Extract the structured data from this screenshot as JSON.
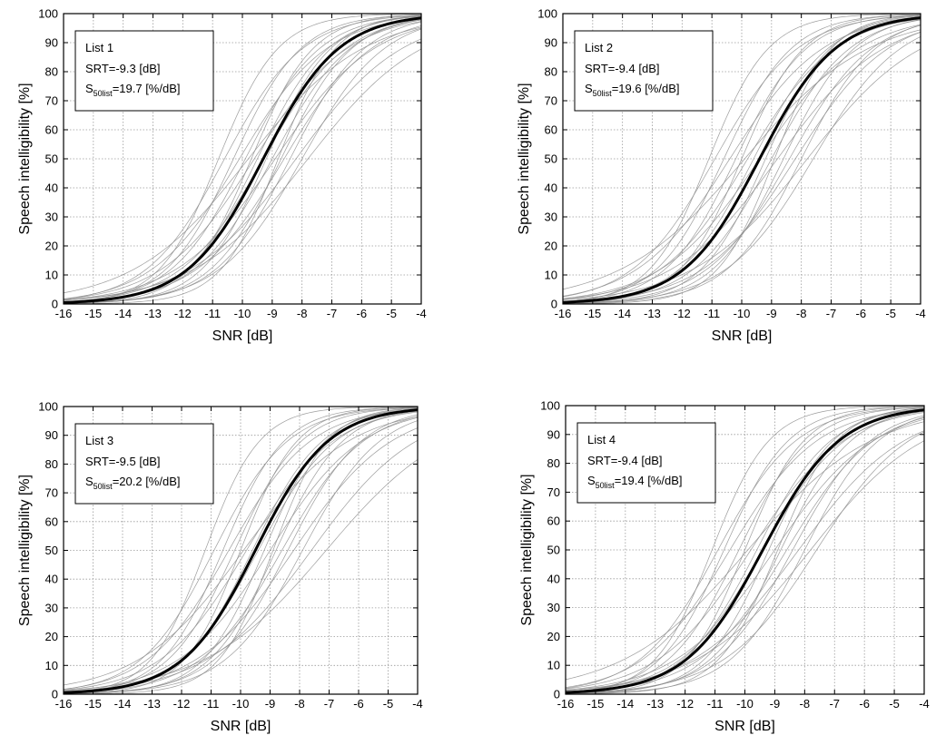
{
  "colors": {
    "mean_curve": "#000000",
    "individual_curve": "#8c8c8c",
    "grid": "#9a9a9a",
    "frame": "#000000"
  },
  "chart_data": [
    {
      "type": "line",
      "xlabel": "SNR [dB]",
      "ylabel": "Speech intelligibility  [%]",
      "xlim": [
        -16,
        -4
      ],
      "ylim": [
        0,
        100
      ],
      "xticks": [
        -16,
        -15,
        -14,
        -13,
        -12,
        -11,
        -10,
        -9,
        -8,
        -7,
        -6,
        -5,
        -4
      ],
      "yticks": [
        0,
        10,
        20,
        30,
        40,
        50,
        60,
        70,
        80,
        90,
        100
      ],
      "grid": true,
      "legend_position": "top-left",
      "legend": {
        "title": "List 1",
        "srt_line": "SRT=-9.3 [dB]",
        "slope_prefix": "S",
        "slope_sub": "50list",
        "slope_value": "=19.7 [%/dB]"
      },
      "mean_curve": {
        "srt": -9.3,
        "slope": 19.7
      },
      "individual_curves": [
        {
          "srt": -10.6,
          "slope": 19
        },
        {
          "srt": -10.3,
          "slope": 22
        },
        {
          "srt": -10.1,
          "slope": 17
        },
        {
          "srt": -9.9,
          "slope": 20
        },
        {
          "srt": -9.7,
          "slope": 24
        },
        {
          "srt": -9.6,
          "slope": 16
        },
        {
          "srt": -9.5,
          "slope": 21
        },
        {
          "srt": -9.3,
          "slope": 18
        },
        {
          "srt": -9.2,
          "slope": 23
        },
        {
          "srt": -9.0,
          "slope": 19
        },
        {
          "srt": -8.9,
          "slope": 15
        },
        {
          "srt": -8.7,
          "slope": 21
        },
        {
          "srt": -8.6,
          "slope": 17
        },
        {
          "srt": -8.4,
          "slope": 20
        },
        {
          "srt": -8.2,
          "slope": 14
        },
        {
          "srt": -8.0,
          "slope": 18
        },
        {
          "srt": -7.8,
          "slope": 13
        },
        {
          "srt": -10.8,
          "slope": 25
        },
        {
          "srt": -9.8,
          "slope": 13
        },
        {
          "srt": -8.8,
          "slope": 26
        }
      ]
    },
    {
      "type": "line",
      "xlabel": "SNR [dB]",
      "ylabel": "Speech intelligibility  [%]",
      "xlim": [
        -16,
        -4
      ],
      "ylim": [
        0,
        100
      ],
      "xticks": [
        -16,
        -15,
        -14,
        -13,
        -12,
        -11,
        -10,
        -9,
        -8,
        -7,
        -6,
        -5,
        -4
      ],
      "yticks": [
        0,
        10,
        20,
        30,
        40,
        50,
        60,
        70,
        80,
        90,
        100
      ],
      "grid": true,
      "legend_position": "top-left",
      "legend": {
        "title": "List 2",
        "srt_line": "SRT=-9.4 [dB]",
        "slope_prefix": "S",
        "slope_sub": "50list",
        "slope_value": "=19.6 [%/dB]"
      },
      "mean_curve": {
        "srt": -9.4,
        "slope": 19.6
      },
      "individual_curves": [
        {
          "srt": -10.9,
          "slope": 18
        },
        {
          "srt": -10.6,
          "slope": 22
        },
        {
          "srt": -10.4,
          "slope": 16
        },
        {
          "srt": -10.2,
          "slope": 21
        },
        {
          "srt": -10.0,
          "slope": 24
        },
        {
          "srt": -9.8,
          "slope": 17
        },
        {
          "srt": -9.6,
          "slope": 20
        },
        {
          "srt": -9.4,
          "slope": 15
        },
        {
          "srt": -9.2,
          "slope": 23
        },
        {
          "srt": -9.0,
          "slope": 19
        },
        {
          "srt": -8.8,
          "slope": 14
        },
        {
          "srt": -8.6,
          "slope": 21
        },
        {
          "srt": -8.4,
          "slope": 18
        },
        {
          "srt": -8.2,
          "slope": 16
        },
        {
          "srt": -8.0,
          "slope": 20
        },
        {
          "srt": -7.8,
          "slope": 13
        },
        {
          "srt": -11.1,
          "slope": 25
        },
        {
          "srt": -9.9,
          "slope": 12
        },
        {
          "srt": -8.9,
          "slope": 26
        },
        {
          "srt": -7.6,
          "slope": 17
        }
      ]
    },
    {
      "type": "line",
      "xlabel": "SNR [dB]",
      "ylabel": "Speech intelligibility  [%]",
      "xlim": [
        -16,
        -4
      ],
      "ylim": [
        0,
        100
      ],
      "xticks": [
        -16,
        -15,
        -14,
        -13,
        -12,
        -11,
        -10,
        -9,
        -8,
        -7,
        -6,
        -5,
        -4
      ],
      "yticks": [
        0,
        10,
        20,
        30,
        40,
        50,
        60,
        70,
        80,
        90,
        100
      ],
      "grid": true,
      "legend_position": "top-left",
      "legend": {
        "title": "List 3",
        "srt_line": "SRT=-9.5 [dB]",
        "slope_prefix": "S",
        "slope_sub": "50list",
        "slope_value": "=20.2 [%/dB]"
      },
      "mean_curve": {
        "srt": -9.5,
        "slope": 20.2
      },
      "individual_curves": [
        {
          "srt": -10.9,
          "slope": 20
        },
        {
          "srt": -10.6,
          "slope": 24
        },
        {
          "srt": -10.4,
          "slope": 18
        },
        {
          "srt": -10.2,
          "slope": 22
        },
        {
          "srt": -10.0,
          "slope": 26
        },
        {
          "srt": -9.8,
          "slope": 17
        },
        {
          "srt": -9.6,
          "slope": 21
        },
        {
          "srt": -9.4,
          "slope": 19
        },
        {
          "srt": -9.2,
          "slope": 24
        },
        {
          "srt": -9.0,
          "slope": 16
        },
        {
          "srt": -8.8,
          "slope": 22
        },
        {
          "srt": -8.6,
          "slope": 18
        },
        {
          "srt": -8.4,
          "slope": 20
        },
        {
          "srt": -8.2,
          "slope": 15
        },
        {
          "srt": -7.9,
          "slope": 19
        },
        {
          "srt": -7.6,
          "slope": 14
        },
        {
          "srt": -7.1,
          "slope": 12
        },
        {
          "srt": -11.2,
          "slope": 27
        },
        {
          "srt": -9.9,
          "slope": 14
        },
        {
          "srt": -8.9,
          "slope": 27
        }
      ]
    },
    {
      "type": "line",
      "xlabel": "SNR [dB]",
      "ylabel": "Speech intelligibility  [%]",
      "xlim": [
        -16,
        -4
      ],
      "ylim": [
        0,
        100
      ],
      "xticks": [
        -16,
        -15,
        -14,
        -13,
        -12,
        -11,
        -10,
        -9,
        -8,
        -7,
        -6,
        -5,
        -4
      ],
      "yticks": [
        0,
        10,
        20,
        30,
        40,
        50,
        60,
        70,
        80,
        90,
        100
      ],
      "grid": true,
      "legend_position": "top-left",
      "legend": {
        "title": "List 4",
        "srt_line": "SRT=-9.4 [dB]",
        "slope_prefix": "S",
        "slope_sub": "50list",
        "slope_value": "=19.4 [%/dB]"
      },
      "mean_curve": {
        "srt": -9.4,
        "slope": 19.4
      },
      "individual_curves": [
        {
          "srt": -10.9,
          "slope": 19
        },
        {
          "srt": -10.7,
          "slope": 23
        },
        {
          "srt": -10.5,
          "slope": 17
        },
        {
          "srt": -10.2,
          "slope": 21
        },
        {
          "srt": -10.0,
          "slope": 25
        },
        {
          "srt": -9.8,
          "slope": 16
        },
        {
          "srt": -9.6,
          "slope": 20
        },
        {
          "srt": -9.4,
          "slope": 18
        },
        {
          "srt": -9.2,
          "slope": 23
        },
        {
          "srt": -9.0,
          "slope": 15
        },
        {
          "srt": -8.8,
          "slope": 21
        },
        {
          "srt": -8.6,
          "slope": 17
        },
        {
          "srt": -8.4,
          "slope": 19
        },
        {
          "srt": -8.2,
          "slope": 14
        },
        {
          "srt": -8.0,
          "slope": 20
        },
        {
          "srt": -7.8,
          "slope": 13
        },
        {
          "srt": -11.1,
          "slope": 26
        },
        {
          "srt": -9.9,
          "slope": 12
        },
        {
          "srt": -8.9,
          "slope": 25
        },
        {
          "srt": -7.6,
          "slope": 16
        }
      ]
    }
  ]
}
